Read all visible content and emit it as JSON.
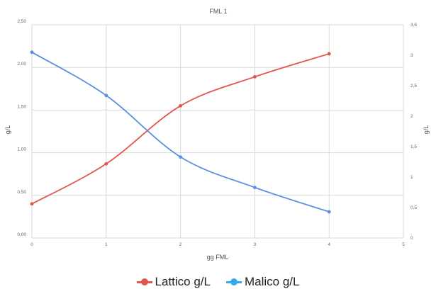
{
  "chart_data": {
    "type": "line",
    "title": "FML 1",
    "xlabel": "gg FML",
    "ylabel": "g/L",
    "y2label": "g/L",
    "x": [
      0,
      1,
      2,
      3,
      4
    ],
    "xlim": [
      0,
      5
    ],
    "x_ticks": [
      "0",
      "1",
      "2",
      "3",
      "4",
      "5"
    ],
    "ylim": [
      0,
      2.5
    ],
    "y_ticks": [
      "0,00",
      "0,50",
      "1,00",
      "1,50",
      "2,00",
      "2,50"
    ],
    "y2lim": [
      0,
      3.5
    ],
    "y2_ticks": [
      "0",
      "0,5",
      "1",
      "1,5",
      "2",
      "2,5",
      "3",
      "3,5"
    ],
    "grid": true,
    "legend_position": "bottom",
    "series": [
      {
        "name": "Lattico g/L",
        "color": "#e0564a",
        "axis": "left",
        "values": [
          0.4,
          0.87,
          1.55,
          1.89,
          2.16
        ]
      },
      {
        "name": "Malico g/L",
        "color": "#5b8fe0",
        "axis": "right",
        "values": [
          3.05,
          2.34,
          1.33,
          0.83,
          0.43
        ]
      }
    ]
  },
  "legend": {
    "items": [
      {
        "label": "Lattico g/L",
        "color": "#e0564a"
      },
      {
        "label": "Malico g/L",
        "color": "#33aaee"
      }
    ]
  }
}
